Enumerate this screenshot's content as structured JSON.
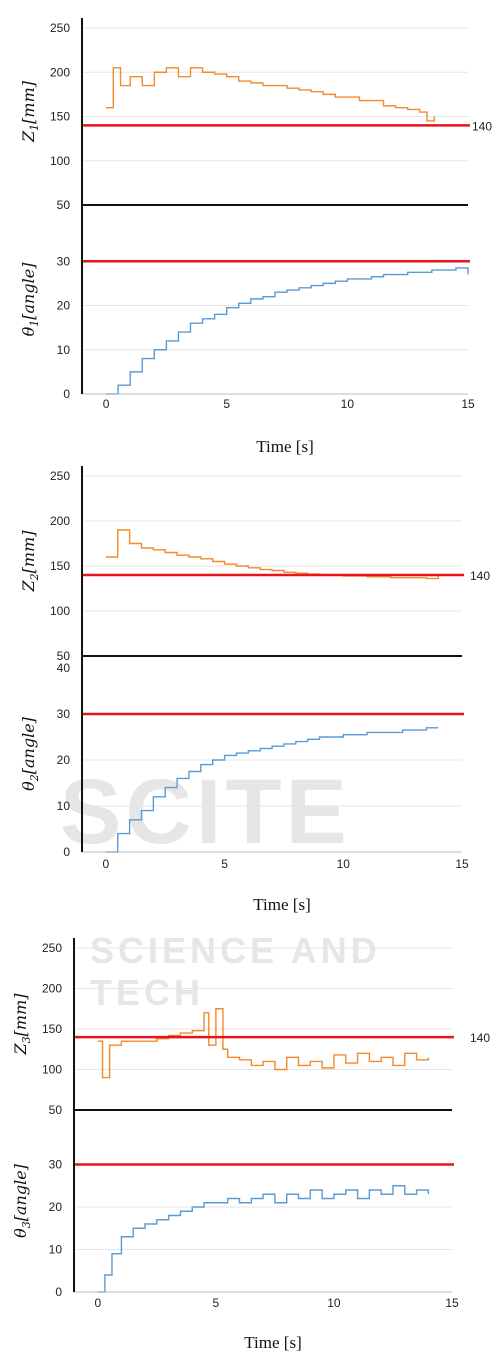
{
  "chart_data": [
    {
      "type": "line",
      "panel": "top",
      "ylabel": "Z_1 [mm]",
      "ylim": [
        50,
        250
      ],
      "y_ticks": [
        "250",
        "200",
        "150",
        "100",
        "50"
      ],
      "reference": {
        "value": 140,
        "label": "140",
        "color": "#e8141b"
      },
      "series": [
        {
          "color": "#f28a2e",
          "x": [
            0,
            0.3,
            0.6,
            1.0,
            1.5,
            2.0,
            2.5,
            3.0,
            3.5,
            4.0,
            4.5,
            5.0,
            5.5,
            6.0,
            6.5,
            7.0,
            7.5,
            8.0,
            8.5,
            9.0,
            9.5,
            10.0,
            10.5,
            11.0,
            11.5,
            12.0,
            12.5,
            13.0,
            13.3,
            13.6
          ],
          "y": [
            160,
            205,
            185,
            195,
            185,
            200,
            205,
            195,
            205,
            200,
            198,
            195,
            190,
            188,
            185,
            185,
            182,
            180,
            178,
            175,
            172,
            172,
            168,
            168,
            162,
            160,
            158,
            155,
            145,
            150
          ]
        }
      ],
      "grid": true
    },
    {
      "type": "line",
      "panel": "bottom",
      "ylabel": "θ_1 [angle]",
      "ylim": [
        0,
        40
      ],
      "y_ticks": [
        "30",
        "20",
        "10",
        "0"
      ],
      "x_ticks": [
        "0",
        "5",
        "10",
        "15"
      ],
      "xlim": [
        -0.5,
        15
      ],
      "xlabel": "Time [s]",
      "reference": {
        "value": 30,
        "color": "#e8141b"
      },
      "series": [
        {
          "color": "#5b9bd5",
          "x": [
            0,
            0.5,
            1,
            1.5,
            2,
            2.5,
            3,
            3.5,
            4,
            4.5,
            5,
            5.5,
            6,
            6.5,
            7,
            7.5,
            8,
            8.5,
            9,
            9.5,
            10,
            10.5,
            11,
            11.5,
            12,
            12.5,
            13,
            13.5,
            14,
            14.5,
            15
          ],
          "y": [
            0,
            2,
            5,
            8,
            10,
            12,
            14,
            16,
            17,
            18,
            19.5,
            20.5,
            21.5,
            22,
            23,
            23.5,
            24,
            24.5,
            25,
            25.5,
            26,
            26,
            26.5,
            27,
            27,
            27.5,
            27.5,
            28,
            28,
            28.5,
            27
          ]
        }
      ],
      "grid": true
    },
    {
      "type": "line",
      "panel": "top",
      "ylabel": "Z_2 [mm]",
      "ylim": [
        50,
        250
      ],
      "y_ticks": [
        "250",
        "200",
        "150",
        "100",
        "50"
      ],
      "reference": {
        "value": 140,
        "label": "140",
        "color": "#e8141b"
      },
      "series": [
        {
          "color": "#f28a2e",
          "x": [
            0,
            0.5,
            1,
            1.5,
            2,
            2.5,
            3,
            3.5,
            4,
            4.5,
            5,
            5.5,
            6,
            6.5,
            7,
            7.5,
            8,
            8.5,
            9,
            9.5,
            10,
            10.5,
            11,
            11.5,
            12,
            12.5,
            13,
            13.5,
            14
          ],
          "y": [
            160,
            190,
            175,
            170,
            168,
            165,
            162,
            160,
            158,
            155,
            152,
            150,
            148,
            146,
            145,
            143,
            142,
            141,
            140,
            140,
            139,
            139,
            138,
            138,
            137,
            137,
            137,
            136,
            140
          ]
        }
      ],
      "grid": true
    },
    {
      "type": "line",
      "panel": "bottom",
      "ylabel": "θ_2 [angle]",
      "ylim": [
        0,
        40
      ],
      "y_ticks": [
        "40",
        "30",
        "20",
        "10",
        "0"
      ],
      "x_ticks": [
        "0",
        "5",
        "10",
        "15"
      ],
      "xlim": [
        -0.5,
        15
      ],
      "xlabel": "Time [s]",
      "reference": {
        "value": 30,
        "color": "#e8141b"
      },
      "series": [
        {
          "color": "#5b9bd5",
          "x": [
            0,
            0.5,
            1,
            1.5,
            2,
            2.5,
            3,
            3.5,
            4,
            4.5,
            5,
            5.5,
            6,
            6.5,
            7,
            7.5,
            8,
            8.5,
            9,
            9.5,
            10,
            10.5,
            11,
            11.5,
            12,
            12.5,
            13,
            13.5,
            14
          ],
          "y": [
            0,
            4,
            7,
            9,
            12,
            14,
            16,
            17.5,
            19,
            20,
            21,
            21.5,
            22,
            22.5,
            23,
            23.5,
            24,
            24.5,
            25,
            25,
            25.5,
            25.5,
            26,
            26,
            26,
            26.5,
            26.5,
            27,
            27
          ]
        }
      ],
      "grid": true
    },
    {
      "type": "line",
      "panel": "top",
      "ylabel": "Z_3 [mm]",
      "ylim": [
        50,
        250
      ],
      "y_ticks": [
        "250",
        "200",
        "150",
        "100",
        "50"
      ],
      "reference": {
        "value": 140,
        "label": "140",
        "color": "#e8141b"
      },
      "series": [
        {
          "color": "#f28a2e",
          "x": [
            0,
            0.2,
            0.5,
            1,
            1.5,
            2,
            2.5,
            3,
            3.5,
            4,
            4.5,
            4.7,
            5,
            5.3,
            5.5,
            6,
            6.5,
            7,
            7.5,
            8,
            8.5,
            9,
            9.5,
            10,
            10.5,
            11,
            11.5,
            12,
            12.5,
            13,
            13.5,
            14
          ],
          "y": [
            135,
            90,
            130,
            135,
            135,
            135,
            138,
            142,
            145,
            148,
            170,
            130,
            175,
            125,
            115,
            112,
            105,
            110,
            100,
            115,
            105,
            110,
            102,
            118,
            108,
            120,
            110,
            115,
            105,
            120,
            112,
            115
          ]
        }
      ],
      "grid": true
    },
    {
      "type": "line",
      "panel": "bottom",
      "ylabel": "θ_3 [angle]",
      "ylim": [
        0,
        40
      ],
      "y_ticks": [
        "30",
        "20",
        "10",
        "0"
      ],
      "x_ticks": [
        "0",
        "5",
        "10",
        "15"
      ],
      "xlim": [
        -0.5,
        15
      ],
      "xlabel": "Time [s]",
      "reference": {
        "value": 30,
        "color": "#e8141b"
      },
      "series": [
        {
          "color": "#5b9bd5",
          "x": [
            0,
            0.3,
            0.6,
            1,
            1.5,
            2,
            2.5,
            3,
            3.5,
            4,
            4.5,
            5,
            5.5,
            6,
            6.5,
            7,
            7.5,
            8,
            8.5,
            9,
            9.5,
            10,
            10.5,
            11,
            11.5,
            12,
            12.5,
            13,
            13.5,
            14
          ],
          "y": [
            0,
            4,
            9,
            13,
            15,
            16,
            17,
            18,
            19,
            20,
            21,
            21,
            22,
            21,
            22,
            23,
            21,
            23,
            22,
            24,
            22,
            23,
            24,
            22,
            24,
            23,
            25,
            23,
            24,
            23
          ]
        }
      ],
      "grid": true
    }
  ],
  "panels": [
    {
      "top_ylabel_main": "Z",
      "top_ylabel_sub": "1",
      "top_ylabel_unit": "[mm]",
      "bot_ylabel_main": "θ",
      "bot_ylabel_sub": "1",
      "bot_ylabel_unit": "[angle]",
      "ref_label": "140",
      "time_label": "Time [s]"
    },
    {
      "top_ylabel_main": "Z",
      "top_ylabel_sub": "2",
      "top_ylabel_unit": "[mm]",
      "bot_ylabel_main": "θ",
      "bot_ylabel_sub": "2",
      "bot_ylabel_unit": "[angle]",
      "ref_label": "140",
      "time_label": "Time [s]"
    },
    {
      "top_ylabel_main": "Z",
      "top_ylabel_sub": "3",
      "top_ylabel_unit": "[mm]",
      "bot_ylabel_main": "θ",
      "bot_ylabel_sub": "3",
      "bot_ylabel_unit": "[angle]",
      "ref_label": "140",
      "time_label": "Time [s]"
    }
  ],
  "watermark": {
    "line1": "SCITE",
    "line2": "SCIENCE AND TECH"
  }
}
